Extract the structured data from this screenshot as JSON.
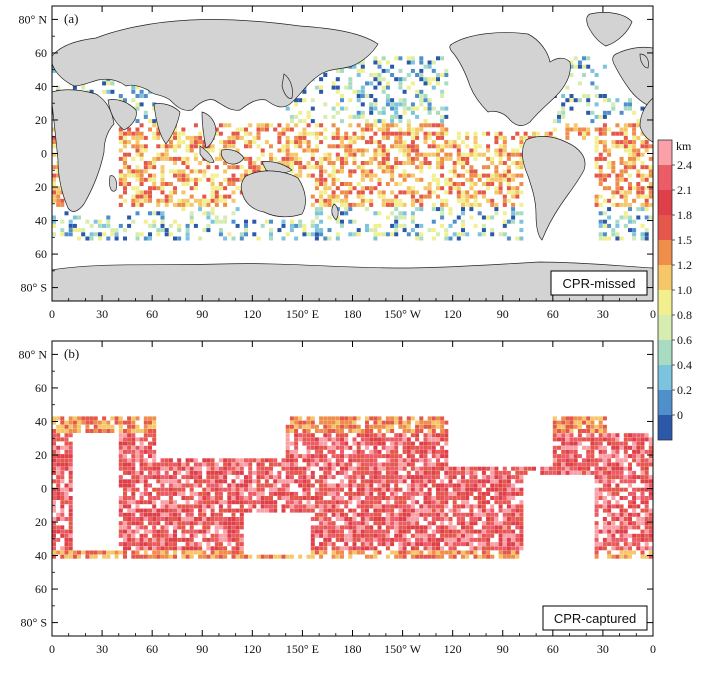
{
  "panels": [
    {
      "id": "a",
      "tag": "(a)",
      "label": "CPR-missed",
      "lat_ticks": [
        "80° N",
        "60",
        "40",
        "20",
        "0",
        "20",
        "40",
        "60",
        "80° S"
      ],
      "lon_ticks": [
        "0",
        "30",
        "60",
        "90",
        "120",
        "150° E",
        "180",
        "150° W",
        "120",
        "90",
        "60",
        "30",
        "0"
      ]
    },
    {
      "id": "b",
      "tag": "(b)",
      "label": "CPR-captured",
      "lat_ticks": [
        "80° N",
        "60",
        "40",
        "20",
        "0",
        "20",
        "40",
        "60",
        "80° S"
      ],
      "lon_ticks": [
        "0",
        "30",
        "60",
        "90",
        "120",
        "150° E",
        "180",
        "150° W",
        "120",
        "90",
        "60",
        "30",
        "0"
      ]
    }
  ],
  "colorbar": {
    "unit": "km",
    "tick_labels": [
      "2.4",
      "2.1",
      "1.8",
      "1.5",
      "1.2",
      "1.0",
      "0.8",
      "0.6",
      "0.4",
      "0.2",
      "0"
    ],
    "colors": [
      "#2b58a8",
      "#4f8fcb",
      "#7cc3de",
      "#a8dcc2",
      "#d6ecb0",
      "#f2f08e",
      "#f6c768",
      "#ef8e4a",
      "#e4574a",
      "#de3f48",
      "#ec5c66",
      "#f9a0a8"
    ]
  },
  "colors": {
    "land": "#d3d3d3",
    "coast": "#222222",
    "ocean": "#ffffff"
  }
}
